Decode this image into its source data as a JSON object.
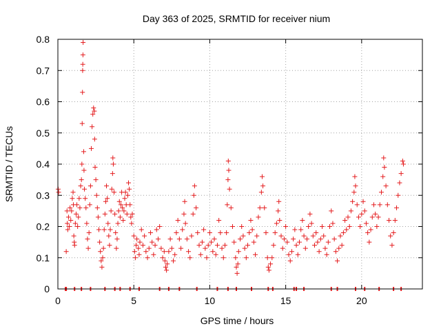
{
  "chart_data": {
    "type": "scatter",
    "title": "Day 363 of 2025, SRMTID for receiver nium",
    "xlabel": "GPS time / hours",
    "ylabel": "SRMTID / TECUs",
    "xlim": [
      0,
      24
    ],
    "ylim": [
      0,
      0.8
    ],
    "x_ticks": [
      0,
      5,
      10,
      15,
      20
    ],
    "x_tick_labels": [
      "0",
      "5",
      "10",
      "15",
      "20"
    ],
    "y_ticks": [
      0,
      0.1,
      0.2,
      0.3,
      0.4,
      0.5,
      0.6,
      0.7,
      0.8
    ],
    "y_tick_labels": [
      "0",
      "0.1",
      "0.2",
      "0.3",
      "0.4",
      "0.5",
      "0.6",
      "0.7",
      "0.8"
    ],
    "grid": true,
    "marker": "plus",
    "color": "#e41a1c",
    "series": [
      {
        "name": "SRMTID",
        "points": [
          [
            0.02,
            0.32
          ],
          [
            0.05,
            0.31
          ],
          [
            0.55,
            0.12
          ],
          [
            0.6,
            0.25
          ],
          [
            0.62,
            0.21
          ],
          [
            0.65,
            0.19
          ],
          [
            0.7,
            0.23
          ],
          [
            0.75,
            0.2
          ],
          [
            0.8,
            0.26
          ],
          [
            0.85,
            0.22
          ],
          [
            0.9,
            0.25
          ],
          [
            0.95,
            0.29
          ],
          [
            1.0,
            0.31
          ],
          [
            1.02,
            0.27
          ],
          [
            1.05,
            0.17
          ],
          [
            1.08,
            0.15
          ],
          [
            1.1,
            0.14
          ],
          [
            1.15,
            0.21
          ],
          [
            1.2,
            0.24
          ],
          [
            1.25,
            0.27
          ],
          [
            1.3,
            0.2
          ],
          [
            1.35,
            0.23
          ],
          [
            1.4,
            0.29
          ],
          [
            1.45,
            0.26
          ],
          [
            1.5,
            0.33
          ],
          [
            1.55,
            0.35
          ],
          [
            1.58,
            0.4
          ],
          [
            1.6,
            0.53
          ],
          [
            1.62,
            0.63
          ],
          [
            1.63,
            0.7
          ],
          [
            1.64,
            0.72
          ],
          [
            1.65,
            0.75
          ],
          [
            1.66,
            0.79
          ],
          [
            1.7,
            0.44
          ],
          [
            1.72,
            0.38
          ],
          [
            1.75,
            0.32
          ],
          [
            1.8,
            0.29
          ],
          [
            1.85,
            0.26
          ],
          [
            1.9,
            0.21
          ],
          [
            1.95,
            0.16
          ],
          [
            2.0,
            0.13
          ],
          [
            2.05,
            0.18
          ],
          [
            2.1,
            0.27
          ],
          [
            2.15,
            0.33
          ],
          [
            2.2,
            0.45
          ],
          [
            2.25,
            0.52
          ],
          [
            2.3,
            0.56
          ],
          [
            2.35,
            0.58
          ],
          [
            2.4,
            0.57
          ],
          [
            2.42,
            0.48
          ],
          [
            2.45,
            0.39
          ],
          [
            2.5,
            0.35
          ],
          [
            2.55,
            0.3
          ],
          [
            2.6,
            0.26
          ],
          [
            2.65,
            0.23
          ],
          [
            2.7,
            0.19
          ],
          [
            2.75,
            0.15
          ],
          [
            2.8,
            0.12
          ],
          [
            2.85,
            0.09
          ],
          [
            2.9,
            0.07
          ],
          [
            2.95,
            0.1
          ],
          [
            3.0,
            0.13
          ],
          [
            3.05,
            0.19
          ],
          [
            3.1,
            0.24
          ],
          [
            3.15,
            0.28
          ],
          [
            3.2,
            0.33
          ],
          [
            3.25,
            0.29
          ],
          [
            3.3,
            0.21
          ],
          [
            3.35,
            0.17
          ],
          [
            3.4,
            0.14
          ],
          [
            3.45,
            0.19
          ],
          [
            3.5,
            0.25
          ],
          [
            3.55,
            0.32
          ],
          [
            3.6,
            0.37
          ],
          [
            3.62,
            0.42
          ],
          [
            3.65,
            0.4
          ],
          [
            3.7,
            0.31
          ],
          [
            3.75,
            0.24
          ],
          [
            3.8,
            0.18
          ],
          [
            3.85,
            0.13
          ],
          [
            3.9,
            0.16
          ],
          [
            3.95,
            0.21
          ],
          [
            4.0,
            0.25
          ],
          [
            4.05,
            0.28
          ],
          [
            4.1,
            0.23
          ],
          [
            4.15,
            0.27
          ],
          [
            4.2,
            0.31
          ],
          [
            4.25,
            0.26
          ],
          [
            4.3,
            0.22
          ],
          [
            4.35,
            0.25
          ],
          [
            4.4,
            0.29
          ],
          [
            4.45,
            0.31
          ],
          [
            4.5,
            0.27
          ],
          [
            4.55,
            0.24
          ],
          [
            4.6,
            0.3
          ],
          [
            4.65,
            0.34
          ],
          [
            4.7,
            0.32
          ],
          [
            4.75,
            0.27
          ],
          [
            4.8,
            0.23
          ],
          [
            4.85,
            0.21
          ],
          [
            4.9,
            0.24
          ],
          [
            5.0,
            0.17
          ],
          [
            5.05,
            0.12
          ],
          [
            5.1,
            0.1
          ],
          [
            5.15,
            0.14
          ],
          [
            5.2,
            0.16
          ],
          [
            5.3,
            0.13
          ],
          [
            5.35,
            0.11
          ],
          [
            5.4,
            0.15
          ],
          [
            5.5,
            0.19
          ],
          [
            5.6,
            0.14
          ],
          [
            5.7,
            0.17
          ],
          [
            5.8,
            0.12
          ],
          [
            5.9,
            0.1
          ],
          [
            6.0,
            0.13
          ],
          [
            6.1,
            0.18
          ],
          [
            6.2,
            0.15
          ],
          [
            6.3,
            0.11
          ],
          [
            6.4,
            0.14
          ],
          [
            6.5,
            0.19
          ],
          [
            6.6,
            0.16
          ],
          [
            6.7,
            0.2
          ],
          [
            6.8,
            0.13
          ],
          [
            6.9,
            0.1
          ],
          [
            7.0,
            0.12
          ],
          [
            7.05,
            0.09
          ],
          [
            7.1,
            0.07
          ],
          [
            7.15,
            0.06
          ],
          [
            7.2,
            0.08
          ],
          [
            7.3,
            0.12
          ],
          [
            7.4,
            0.16
          ],
          [
            7.5,
            0.13
          ],
          [
            7.6,
            0.09
          ],
          [
            7.7,
            0.11
          ],
          [
            7.8,
            0.18
          ],
          [
            7.9,
            0.22
          ],
          [
            8.0,
            0.16
          ],
          [
            8.1,
            0.13
          ],
          [
            8.2,
            0.19
          ],
          [
            8.3,
            0.24
          ],
          [
            8.35,
            0.28
          ],
          [
            8.4,
            0.21
          ],
          [
            8.5,
            0.16
          ],
          [
            8.6,
            0.12
          ],
          [
            8.7,
            0.1
          ],
          [
            8.8,
            0.17
          ],
          [
            8.9,
            0.24
          ],
          [
            8.95,
            0.3
          ],
          [
            9.0,
            0.33
          ],
          [
            9.1,
            0.26
          ],
          [
            9.2,
            0.18
          ],
          [
            9.3,
            0.14
          ],
          [
            9.4,
            0.11
          ],
          [
            9.5,
            0.15
          ],
          [
            9.6,
            0.19
          ],
          [
            9.7,
            0.13
          ],
          [
            9.8,
            0.1
          ],
          [
            9.9,
            0.14
          ],
          [
            10.0,
            0.18
          ],
          [
            10.1,
            0.15
          ],
          [
            10.2,
            0.12
          ],
          [
            10.3,
            0.16
          ],
          [
            10.4,
            0.11
          ],
          [
            10.5,
            0.14
          ],
          [
            10.6,
            0.22
          ],
          [
            10.7,
            0.18
          ],
          [
            10.8,
            0.13
          ],
          [
            10.9,
            0.1
          ],
          [
            11.0,
            0.14
          ],
          [
            11.1,
            0.18
          ],
          [
            11.15,
            0.27
          ],
          [
            11.2,
            0.35
          ],
          [
            11.22,
            0.41
          ],
          [
            11.25,
            0.38
          ],
          [
            11.3,
            0.32
          ],
          [
            11.4,
            0.26
          ],
          [
            11.5,
            0.2
          ],
          [
            11.6,
            0.15
          ],
          [
            11.7,
            0.1
          ],
          [
            11.75,
            0.07
          ],
          [
            11.8,
            0.05
          ],
          [
            11.85,
            0.08
          ],
          [
            11.9,
            0.12
          ],
          [
            12.0,
            0.16
          ],
          [
            12.1,
            0.2
          ],
          [
            12.2,
            0.17
          ],
          [
            12.3,
            0.13
          ],
          [
            12.4,
            0.1
          ],
          [
            12.5,
            0.14
          ],
          [
            12.6,
            0.18
          ],
          [
            12.7,
            0.22
          ],
          [
            12.8,
            0.19
          ],
          [
            12.9,
            0.15
          ],
          [
            13.0,
            0.11
          ],
          [
            13.1,
            0.17
          ],
          [
            13.2,
            0.23
          ],
          [
            13.3,
            0.26
          ],
          [
            13.4,
            0.31
          ],
          [
            13.45,
            0.36
          ],
          [
            13.5,
            0.33
          ],
          [
            13.6,
            0.26
          ],
          [
            13.7,
            0.18
          ],
          [
            13.8,
            0.1
          ],
          [
            13.85,
            0.07
          ],
          [
            13.9,
            0.06
          ],
          [
            14.0,
            0.08
          ],
          [
            14.1,
            0.1
          ],
          [
            14.2,
            0.14
          ],
          [
            14.3,
            0.18
          ],
          [
            14.4,
            0.21
          ],
          [
            14.5,
            0.25
          ],
          [
            14.55,
            0.28
          ],
          [
            14.6,
            0.22
          ],
          [
            14.7,
            0.17
          ],
          [
            14.8,
            0.13
          ],
          [
            14.9,
            0.16
          ],
          [
            15.0,
            0.2
          ],
          [
            15.1,
            0.15
          ],
          [
            15.2,
            0.11
          ],
          [
            15.3,
            0.09
          ],
          [
            15.4,
            0.12
          ],
          [
            15.5,
            0.16
          ],
          [
            15.6,
            0.19
          ],
          [
            15.7,
            0.14
          ],
          [
            15.8,
            0.11
          ],
          [
            15.9,
            0.15
          ],
          [
            16.0,
            0.19
          ],
          [
            16.1,
            0.22
          ],
          [
            16.2,
            0.17
          ],
          [
            16.3,
            0.13
          ],
          [
            16.4,
            0.16
          ],
          [
            16.5,
            0.2
          ],
          [
            16.6,
            0.24
          ],
          [
            16.7,
            0.21
          ],
          [
            16.8,
            0.17
          ],
          [
            16.9,
            0.14
          ],
          [
            17.0,
            0.18
          ],
          [
            17.1,
            0.15
          ],
          [
            17.2,
            0.12
          ],
          [
            17.3,
            0.16
          ],
          [
            17.4,
            0.2
          ],
          [
            17.5,
            0.17
          ],
          [
            17.6,
            0.13
          ],
          [
            17.7,
            0.11
          ],
          [
            17.8,
            0.15
          ],
          [
            17.9,
            0.2
          ],
          [
            18.0,
            0.25
          ],
          [
            18.1,
            0.21
          ],
          [
            18.2,
            0.16
          ],
          [
            18.3,
            0.12
          ],
          [
            18.4,
            0.09
          ],
          [
            18.5,
            0.13
          ],
          [
            18.6,
            0.17
          ],
          [
            18.7,
            0.14
          ],
          [
            18.8,
            0.18
          ],
          [
            18.9,
            0.22
          ],
          [
            19.0,
            0.19
          ],
          [
            19.1,
            0.23
          ],
          [
            19.2,
            0.2
          ],
          [
            19.3,
            0.25
          ],
          [
            19.4,
            0.28
          ],
          [
            19.5,
            0.31
          ],
          [
            19.55,
            0.36
          ],
          [
            19.6,
            0.33
          ],
          [
            19.7,
            0.27
          ],
          [
            19.8,
            0.23
          ],
          [
            19.9,
            0.2
          ],
          [
            20.0,
            0.24
          ],
          [
            20.1,
            0.28
          ],
          [
            20.2,
            0.25
          ],
          [
            20.3,
            0.21
          ],
          [
            20.4,
            0.18
          ],
          [
            20.5,
            0.15
          ],
          [
            20.6,
            0.19
          ],
          [
            20.7,
            0.23
          ],
          [
            20.8,
            0.27
          ],
          [
            20.9,
            0.24
          ],
          [
            21.0,
            0.2
          ],
          [
            21.1,
            0.23
          ],
          [
            21.2,
            0.27
          ],
          [
            21.3,
            0.31
          ],
          [
            21.4,
            0.36
          ],
          [
            21.45,
            0.42
          ],
          [
            21.5,
            0.39
          ],
          [
            21.6,
            0.33
          ],
          [
            21.7,
            0.27
          ],
          [
            21.8,
            0.22
          ],
          [
            21.9,
            0.17
          ],
          [
            22.0,
            0.14
          ],
          [
            22.1,
            0.18
          ],
          [
            22.2,
            0.22
          ],
          [
            22.3,
            0.26
          ],
          [
            22.4,
            0.3
          ],
          [
            22.5,
            0.34
          ],
          [
            22.6,
            0.37
          ],
          [
            22.7,
            0.41
          ],
          [
            22.75,
            0.4
          ]
        ]
      }
    ],
    "zero_markers_x": [
      0.5,
      0.55,
      1.1,
      1.55,
      2.15,
      3.1,
      3.75,
      4.1,
      4.75,
      5.35,
      6.7,
      7.3,
      8.0,
      9.15,
      10.5,
      11.2,
      11.75,
      12.75,
      13.85,
      14.15,
      15.55,
      15.7,
      16.2,
      18.0,
      18.4,
      19.6,
      20.2,
      21.15,
      22.1,
      22.6
    ],
    "legend": null
  }
}
